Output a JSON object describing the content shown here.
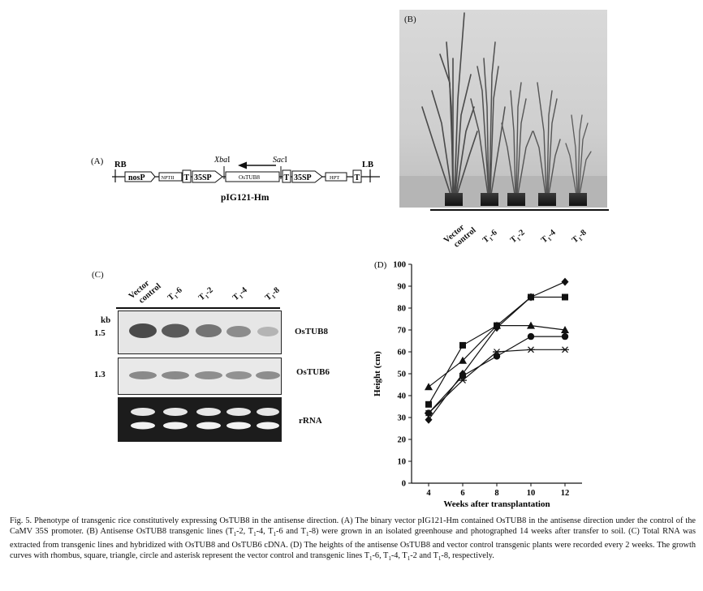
{
  "panel_a": {
    "label": "(A)",
    "rb": "RB",
    "lb": "LB",
    "nos_p": "nosP",
    "nptii": "NPTII",
    "t1": "T",
    "p35s_1": "35SP",
    "ostub8": "OsTUB8",
    "t2": "T",
    "p35s_2": "35SP",
    "hpt": "HPT",
    "t3": "T",
    "xba": "Xba",
    "xba_i": "I",
    "sac": "Sac",
    "sac_i": "I",
    "vector_name": "pIG121-Hm"
  },
  "panel_b": {
    "label": "(B)",
    "lanes": [
      "Vector control",
      "T1-6",
      "T1-2",
      "T1-4",
      "T1-8"
    ]
  },
  "panel_c": {
    "label": "(C)",
    "lanes": [
      "Vector control",
      "T1-6",
      "T1-2",
      "T1-4",
      "T1-8"
    ],
    "kb_label": "kb",
    "size_1": "1.5",
    "size_2": "1.3",
    "probe_1": "OsTUB8",
    "probe_2": "OsTUB6",
    "probe_3": "rRNA"
  },
  "chart_data": {
    "type": "line",
    "panel_label": "(D)",
    "xlabel": "Weeks after transplantation",
    "ylabel": "Height (cm)",
    "x": [
      4,
      6,
      8,
      10,
      12
    ],
    "xticks": [
      "4",
      "6",
      "8",
      "10",
      "12"
    ],
    "ylim": [
      0,
      100
    ],
    "yticks": [
      "0",
      "10",
      "20",
      "30",
      "40",
      "50",
      "60",
      "70",
      "80",
      "90",
      "100"
    ],
    "series": [
      {
        "marker": "diamond",
        "values": [
          29,
          50,
          71,
          85,
          92
        ]
      },
      {
        "marker": "square",
        "values": [
          36,
          63,
          72,
          85,
          85
        ]
      },
      {
        "marker": "triangle",
        "values": [
          44,
          56,
          72,
          72,
          70
        ]
      },
      {
        "marker": "circle",
        "values": [
          32,
          49,
          58,
          67,
          67
        ]
      },
      {
        "marker": "asterisk",
        "values": [
          32,
          47,
          60,
          61,
          61
        ]
      }
    ]
  },
  "caption": {
    "p1": "Fig. 5. Phenotype of transgenic rice constitutively expressing OsTUB8 in the antisense direction. (A) The binary vector pIG121-Hm contained OsTUB8 in the antisense direction under the control of the CaMV 35S promoter. (B) Antisense OsTUB8 transgenic lines (T",
    "s1": "1",
    "p2": "-2, T",
    "s2": "1",
    "p3": "-4, T",
    "s3": "1",
    "p4": "-6 and T",
    "s4": "1",
    "p5": "-8) were grown in an isolated greenhouse and photographed 14 weeks after transfer to soil. (C) Total RNA was extracted from transgenic lines and hybridized with OsTUB8 and OsTUB6 cDNA. (D) The heights of the antisense OsTUB8 and vector control transgenic plants were recorded every 2 weeks. The growth curves with rhombus, square, triangle, circle and asterisk represent the vector control and transgenic lines T",
    "s5": "1",
    "p6": "-6, T",
    "s6": "1",
    "p7": "-4, T",
    "s7": "1",
    "p8": "-2 and T",
    "s8": "1",
    "p9": "-8, respectively."
  }
}
